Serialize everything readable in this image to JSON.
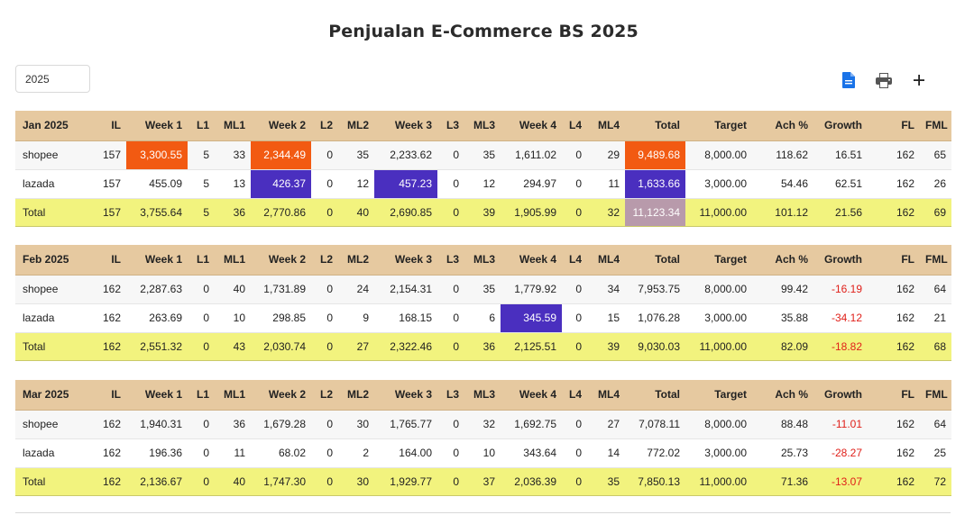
{
  "title": "Penjualan E-Commerce BS 2025",
  "year_input": {
    "value": "2025"
  },
  "toolbar": {
    "icons": [
      "file-icon",
      "print-icon",
      "plus-icon"
    ],
    "file_color": "#1a73e8"
  },
  "highlight_colors": {
    "orange": "#f25a12",
    "purple": "#4a2fbf",
    "mauve": "#b89aab",
    "header": "#e6c9a0",
    "total_row": "#f2f37e"
  },
  "columns": [
    "IL",
    "Week 1",
    "L1",
    "ML1",
    "Week 2",
    "L2",
    "ML2",
    "Week 3",
    "L3",
    "ML3",
    "Week 4",
    "L4",
    "ML4",
    "Total",
    "Target",
    "Ach %",
    "Growth",
    "FL",
    "FML"
  ],
  "months": [
    {
      "label": "Jan 2025",
      "rows": [
        {
          "name": "shopee",
          "cells": [
            "157",
            "3,300.55",
            "5",
            "33",
            "2,344.49",
            "0",
            "35",
            "2,233.62",
            "0",
            "35",
            "1,611.02",
            "0",
            "29",
            "9,489.68",
            "8,000.00",
            "118.62",
            "16.51",
            "162",
            "65"
          ]
        },
        {
          "name": "lazada",
          "cells": [
            "157",
            "455.09",
            "5",
            "13",
            "426.37",
            "0",
            "12",
            "457.23",
            "0",
            "12",
            "294.97",
            "0",
            "11",
            "1,633.66",
            "3,000.00",
            "54.46",
            "62.51",
            "162",
            "26"
          ]
        },
        {
          "name": "Total",
          "cells": [
            "157",
            "3,755.64",
            "5",
            "36",
            "2,770.86",
            "0",
            "40",
            "2,690.85",
            "0",
            "39",
            "1,905.99",
            "0",
            "32",
            "11,123.34",
            "11,000.00",
            "101.12",
            "21.56",
            "162",
            "69"
          ]
        }
      ]
    },
    {
      "label": "Feb 2025",
      "rows": [
        {
          "name": "shopee",
          "cells": [
            "162",
            "2,287.63",
            "0",
            "40",
            "1,731.89",
            "0",
            "24",
            "2,154.31",
            "0",
            "35",
            "1,779.92",
            "0",
            "34",
            "7,953.75",
            "8,000.00",
            "99.42",
            "-16.19",
            "162",
            "64"
          ]
        },
        {
          "name": "lazada",
          "cells": [
            "162",
            "263.69",
            "0",
            "10",
            "298.85",
            "0",
            "9",
            "168.15",
            "0",
            "6",
            "345.59",
            "0",
            "15",
            "1,076.28",
            "3,000.00",
            "35.88",
            "-34.12",
            "162",
            "21"
          ]
        },
        {
          "name": "Total",
          "cells": [
            "162",
            "2,551.32",
            "0",
            "43",
            "2,030.74",
            "0",
            "27",
            "2,322.46",
            "0",
            "36",
            "2,125.51",
            "0",
            "39",
            "9,030.03",
            "11,000.00",
            "82.09",
            "-18.82",
            "162",
            "68"
          ]
        }
      ]
    },
    {
      "label": "Mar 2025",
      "rows": [
        {
          "name": "shopee",
          "cells": [
            "162",
            "1,940.31",
            "0",
            "36",
            "1,679.28",
            "0",
            "30",
            "1,765.77",
            "0",
            "32",
            "1,692.75",
            "0",
            "27",
            "7,078.11",
            "8,000.00",
            "88.48",
            "-11.01",
            "162",
            "64"
          ]
        },
        {
          "name": "lazada",
          "cells": [
            "162",
            "196.36",
            "0",
            "11",
            "68.02",
            "0",
            "2",
            "164.00",
            "0",
            "10",
            "343.64",
            "0",
            "14",
            "772.02",
            "3,000.00",
            "25.73",
            "-28.27",
            "162",
            "25"
          ]
        },
        {
          "name": "Total",
          "cells": [
            "162",
            "2,136.67",
            "0",
            "40",
            "1,747.30",
            "0",
            "30",
            "1,929.77",
            "0",
            "37",
            "2,036.39",
            "0",
            "35",
            "7,850.13",
            "11,000.00",
            "71.36",
            "-13.07",
            "162",
            "72"
          ]
        }
      ]
    }
  ],
  "highlights": [
    {
      "month": 0,
      "row": 0,
      "col": 1,
      "color": "orange"
    },
    {
      "month": 0,
      "row": 0,
      "col": 4,
      "color": "orange"
    },
    {
      "month": 0,
      "row": 0,
      "col": 13,
      "color": "orange"
    },
    {
      "month": 0,
      "row": 1,
      "col": 4,
      "color": "purple"
    },
    {
      "month": 0,
      "row": 1,
      "col": 7,
      "color": "purple"
    },
    {
      "month": 0,
      "row": 1,
      "col": 13,
      "color": "purple"
    },
    {
      "month": 0,
      "row": 2,
      "col": 13,
      "color": "mauve"
    },
    {
      "month": 1,
      "row": 1,
      "col": 10,
      "color": "purple"
    }
  ]
}
